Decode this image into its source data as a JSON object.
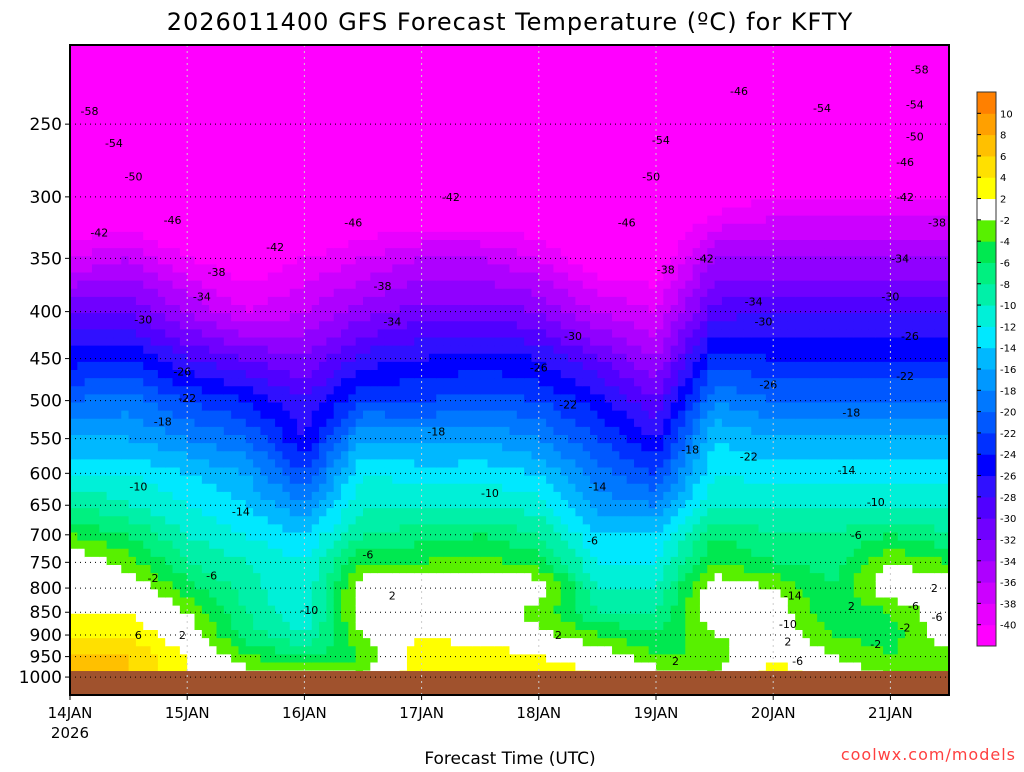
{
  "chart_data": {
    "type": "heatmap",
    "title": "2026011400 GFS Forecast Temperature (ºC) for KFTY",
    "xlabel": "Forecast Time (UTC)",
    "ylabel": "",
    "credit": "coolwx.com/models",
    "x_ticks": [
      "14JAN",
      "15JAN",
      "16JAN",
      "17JAN",
      "18JAN",
      "19JAN",
      "20JAN",
      "21JAN"
    ],
    "x_tick_hours": [
      0,
      24,
      48,
      72,
      96,
      120,
      144,
      168
    ],
    "x_year": "2026",
    "xlim_hours": [
      0,
      180
    ],
    "y_ticks": [
      250,
      300,
      350,
      400,
      450,
      500,
      550,
      600,
      650,
      700,
      750,
      800,
      850,
      900,
      950,
      1000
    ],
    "ylim_hPa": [
      1046,
      205
    ],
    "y_scale": "log",
    "grid": true,
    "surface_pressure_hPa": 985,
    "hours": [
      0,
      12,
      24,
      36,
      48,
      60,
      72,
      84,
      96,
      108,
      120,
      132,
      144,
      156,
      168,
      180
    ],
    "levels_hPa": [
      1000,
      950,
      900,
      850,
      800,
      750,
      700,
      650,
      600,
      550,
      500,
      450,
      400,
      350,
      300,
      250,
      200
    ],
    "temperature_C": [
      [
        8,
        6,
        4,
        2,
        2,
        0,
        -4,
        -8,
        -12,
        -16,
        -20,
        -25,
        -30,
        -38,
        -44,
        -54,
        -58
      ],
      [
        6,
        6,
        4,
        2,
        0,
        -3,
        -6,
        -10,
        -12,
        -16,
        -19,
        -24,
        -30,
        -36,
        -45,
        -54,
        -58
      ],
      [
        2,
        2,
        0,
        -2,
        -5,
        -8,
        -10,
        -12,
        -14,
        -18,
        -22,
        -28,
        -34,
        -40,
        -46,
        -52,
        -58
      ],
      [
        0,
        -4,
        -7,
        -8,
        -9,
        -10,
        -12,
        -14,
        -16,
        -20,
        -24,
        -30,
        -38,
        -42,
        -46,
        -50,
        -56
      ],
      [
        0,
        -6,
        -10,
        -12,
        -12,
        -12,
        -14,
        -18,
        -22,
        -26,
        -28,
        -32,
        -36,
        -40,
        -46,
        -50,
        -56
      ],
      [
        -2,
        -4,
        -2,
        0,
        0,
        -4,
        -8,
        -10,
        -12,
        -16,
        -22,
        -27,
        -33,
        -38,
        -44,
        -50,
        -56
      ],
      [
        4,
        4,
        2,
        0,
        0,
        -4,
        -7,
        -10,
        -13,
        -17,
        -22,
        -26,
        -31,
        -36,
        -44,
        -52,
        -56
      ],
      [
        2,
        4,
        0,
        0,
        1,
        -3,
        -6,
        -10,
        -13,
        -16,
        -21,
        -25,
        -31,
        -36,
        -44,
        -52,
        -56
      ],
      [
        6,
        2,
        -1,
        -3,
        0,
        -5,
        -8,
        -11,
        -14,
        -18,
        -22,
        -26,
        -32,
        -38,
        -44,
        -50,
        -56
      ],
      [
        2,
        0,
        -4,
        -8,
        -10,
        -12,
        -14,
        -17,
        -19,
        -22,
        -25,
        -30,
        -36,
        -42,
        -46,
        -50,
        -54
      ],
      [
        0,
        -4,
        -6,
        -8,
        -10,
        -12,
        -14,
        -18,
        -22,
        -26,
        -30,
        -34,
        -38,
        -42,
        -46,
        -50,
        -54
      ],
      [
        -2,
        -4,
        -2,
        0,
        0,
        -4,
        -6,
        -10,
        -12,
        -14,
        -18,
        -23,
        -29,
        -34,
        -42,
        -50,
        -56
      ],
      [
        4,
        2,
        0,
        0,
        -2,
        -6,
        -8,
        -10,
        -13,
        -16,
        -20,
        -24,
        -28,
        -34,
        -40,
        -48,
        -56
      ],
      [
        0,
        -2,
        -4,
        -6,
        -6,
        -7,
        -8,
        -10,
        -13,
        -16,
        -20,
        -24,
        -28,
        -34,
        -40,
        -48,
        -56
      ],
      [
        -2,
        -4,
        -5,
        -4,
        0,
        -2,
        -6,
        -10,
        -13,
        -16,
        -20,
        -24,
        -28,
        -34,
        -40,
        -48,
        -56
      ],
      [
        -2,
        -3,
        0,
        0,
        0,
        -4,
        -8,
        -10,
        -13,
        -16,
        -20,
        -24,
        -28,
        -34,
        -40,
        -48,
        -56
      ]
    ],
    "colorbar": {
      "labels": [
        "10",
        "8",
        "6",
        "4",
        "2",
        "-2",
        "-4",
        "-6",
        "-8",
        "-10",
        "-12",
        "-14",
        "-16",
        "-18",
        "-20",
        "-22",
        "-24",
        "-26",
        "-28",
        "-30",
        "-32",
        "-34",
        "-36",
        "-38",
        "-40"
      ],
      "bounds": [
        -40,
        -38,
        -36,
        -34,
        -32,
        -30,
        -28,
        -26,
        -24,
        -22,
        -20,
        -18,
        -16,
        -14,
        -12,
        -10,
        -8,
        -6,
        -4,
        -2,
        2,
        4,
        6,
        8,
        10
      ],
      "colors": [
        "#ff00ff",
        "#e800ff",
        "#cc00ff",
        "#ae00ff",
        "#9000ff",
        "#7000ff",
        "#5000ff",
        "#3010ff",
        "#0000ff",
        "#0030ff",
        "#0058ff",
        "#0078ff",
        "#0098ff",
        "#00b8ff",
        "#00e8ff",
        "#00f0d8",
        "#00f0a8",
        "#00f080",
        "#00e850",
        "#58f000",
        "#ffffff",
        "#ffff00",
        "#ffe000",
        "#ffc000",
        "#ffa000",
        "#ff8000"
      ]
    },
    "contour_labels": [
      {
        "text": "-58",
        "h": 4,
        "p": 242
      },
      {
        "text": "-54",
        "h": 9,
        "p": 262
      },
      {
        "text": "-50",
        "h": 13,
        "p": 285
      },
      {
        "text": "-46",
        "h": 21,
        "p": 318
      },
      {
        "text": "-42",
        "h": 6,
        "p": 328
      },
      {
        "text": "-38",
        "h": 30,
        "p": 362
      },
      {
        "text": "-34",
        "h": 27,
        "p": 385
      },
      {
        "text": "-30",
        "h": 15,
        "p": 408
      },
      {
        "text": "-26",
        "h": 23,
        "p": 465
      },
      {
        "text": "-22",
        "h": 24,
        "p": 497
      },
      {
        "text": "-18",
        "h": 19,
        "p": 527
      },
      {
        "text": "-10",
        "h": 14,
        "p": 620
      },
      {
        "text": "-14",
        "h": 35,
        "p": 660
      },
      {
        "text": "-6",
        "h": 29,
        "p": 775
      },
      {
        "text": "-2",
        "h": 17,
        "p": 780
      },
      {
        "text": "6",
        "h": 14,
        "p": 900
      },
      {
        "text": "2",
        "h": 23,
        "p": 900
      },
      {
        "text": "-42",
        "h": 42,
        "p": 340
      },
      {
        "text": "-46",
        "h": 58,
        "p": 320
      },
      {
        "text": "-38",
        "h": 64,
        "p": 375
      },
      {
        "text": "-34",
        "h": 66,
        "p": 410
      },
      {
        "text": "-10",
        "h": 49,
        "p": 845
      },
      {
        "text": "-6",
        "h": 61,
        "p": 735
      },
      {
        "text": "2",
        "h": 66,
        "p": 815
      },
      {
        "text": "-18",
        "h": 75,
        "p": 540
      },
      {
        "text": "-10",
        "h": 86,
        "p": 630
      },
      {
        "text": "-6",
        "h": 107,
        "p": 710
      },
      {
        "text": "-26",
        "h": 96,
        "p": 460
      },
      {
        "text": "-30",
        "h": 103,
        "p": 425
      },
      {
        "text": "-22",
        "h": 102,
        "p": 505
      },
      {
        "text": "-14",
        "h": 108,
        "p": 620
      },
      {
        "text": "2",
        "h": 100,
        "p": 900
      },
      {
        "text": "-42",
        "h": 78,
        "p": 300
      },
      {
        "text": "-46",
        "h": 114,
        "p": 320
      },
      {
        "text": "-50",
        "h": 119,
        "p": 285
      },
      {
        "text": "-54",
        "h": 121,
        "p": 260
      },
      {
        "text": "-38",
        "h": 122,
        "p": 360
      },
      {
        "text": "-42",
        "h": 130,
        "p": 350
      },
      {
        "text": "-46",
        "h": 137,
        "p": 230
      },
      {
        "text": "-34",
        "h": 140,
        "p": 390
      },
      {
        "text": "-30",
        "h": 142,
        "p": 410
      },
      {
        "text": "-26",
        "h": 143,
        "p": 480
      },
      {
        "text": "-22",
        "h": 139,
        "p": 575
      },
      {
        "text": "-18",
        "h": 127,
        "p": 565
      },
      {
        "text": "-10",
        "h": 147,
        "p": 875
      },
      {
        "text": "-14",
        "h": 148,
        "p": 815
      },
      {
        "text": "-6",
        "h": 149,
        "p": 960
      },
      {
        "text": "2",
        "h": 124,
        "p": 960
      },
      {
        "text": "-6",
        "h": 161,
        "p": 700
      },
      {
        "text": "-2",
        "h": 165,
        "p": 920
      },
      {
        "text": "2",
        "h": 177,
        "p": 800
      },
      {
        "text": "-10",
        "h": 165,
        "p": 645
      },
      {
        "text": "-14",
        "h": 159,
        "p": 595
      },
      {
        "text": "-18",
        "h": 160,
        "p": 515
      },
      {
        "text": "-22",
        "h": 171,
        "p": 470
      },
      {
        "text": "-26",
        "h": 172,
        "p": 425
      },
      {
        "text": "-30",
        "h": 168,
        "p": 385
      },
      {
        "text": "-34",
        "h": 170,
        "p": 350
      },
      {
        "text": "-38",
        "h": 178,
        "p": 320
      },
      {
        "text": "-42",
        "h": 171,
        "p": 300
      },
      {
        "text": "-46",
        "h": 171,
        "p": 275
      },
      {
        "text": "-50",
        "h": 173,
        "p": 258
      },
      {
        "text": "-54",
        "h": 173,
        "p": 238
      },
      {
        "text": "-58",
        "h": 174,
        "p": 218
      },
      {
        "text": "-54",
        "h": 154,
        "p": 240
      },
      {
        "text": "-6",
        "h": 178,
        "p": 860
      },
      {
        "text": "-6",
        "h": 176,
        "p": 837
      },
      {
        "text": "-2",
        "h": 171,
        "p": 855
      },
      {
        "text": "2",
        "h": 147,
        "p": 885
      },
      {
        "text": "2",
        "h": 160,
        "p": 837
      }
    ]
  }
}
